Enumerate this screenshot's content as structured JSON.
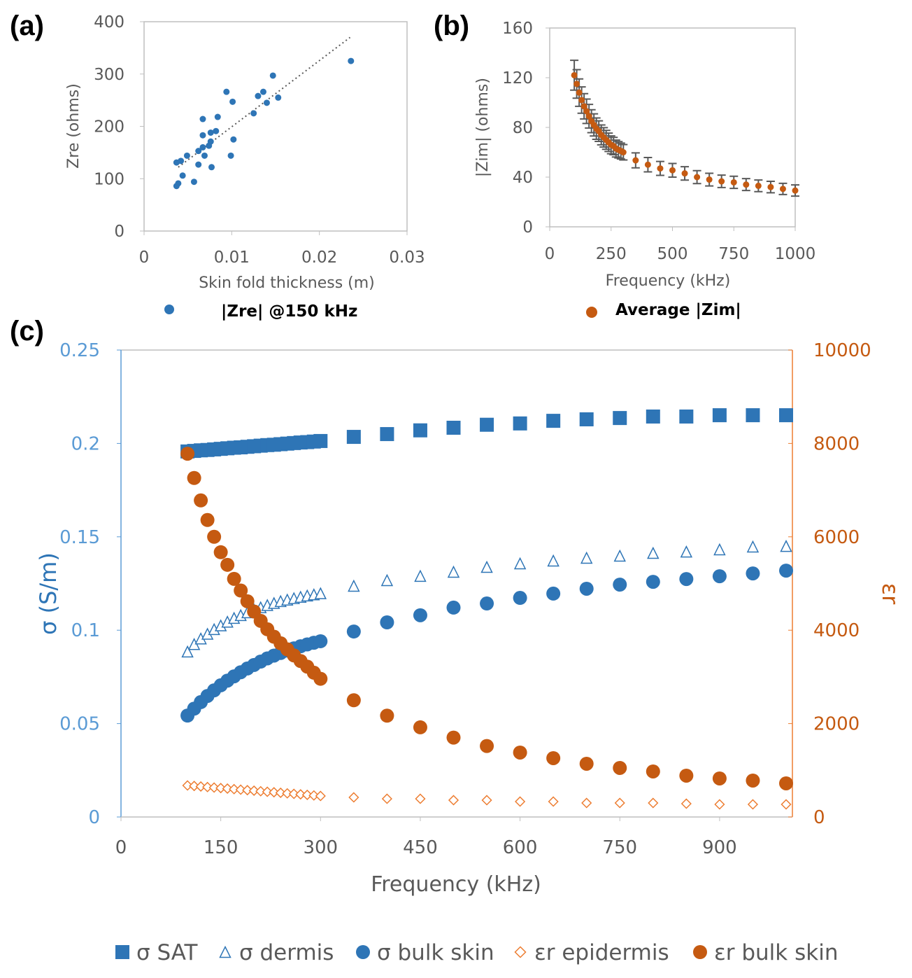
{
  "panel_labels": [
    "(a)",
    "(b)",
    "(c)"
  ],
  "colors": {
    "blue": "#2E75B6",
    "light_blue": "#5B9BD5",
    "orange": "#C55A11",
    "grey": "#595959"
  },
  "chart_data": [
    {
      "type": "scatter",
      "panel": "(a)",
      "xlabel": "Skin fold thickness (m)",
      "ylabel": "Zre (ohms)",
      "xlim": [
        0,
        0.03
      ],
      "ylim": [
        0,
        400
      ],
      "xticks": [
        "0",
        "0.01",
        "0.02",
        "0.03"
      ],
      "yticks": [
        "0",
        "100",
        "200",
        "300",
        "400"
      ],
      "grid": false,
      "legend_position": "bottom",
      "series": [
        {
          "name": "|Zre| @150 kHz",
          "color": "#2E75B6",
          "x": [
            0.0236,
            0.0147,
            0.0094,
            0.0136,
            0.013,
            0.0153,
            0.0101,
            0.014,
            0.0125,
            0.0067,
            0.0084,
            0.0067,
            0.0076,
            0.0082,
            0.0102,
            0.0076,
            0.0074,
            0.0067,
            0.0062,
            0.0049,
            0.0069,
            0.0099,
            0.0037,
            0.0042,
            0.0062,
            0.0077,
            0.0044,
            0.0057,
            0.0039,
            0.0037
          ],
          "y": [
            325,
            297,
            266,
            266,
            258,
            255,
            247,
            245,
            225,
            214,
            218,
            183,
            188,
            191,
            175,
            171,
            163,
            160,
            153,
            144,
            144,
            144,
            131,
            134,
            127,
            122,
            106,
            94,
            91,
            86
          ]
        }
      ],
      "trendline": {
        "style": "dotted",
        "x": [
          0.0039,
          0.0235
        ],
        "y": [
          122,
          370
        ]
      }
    },
    {
      "type": "scatter",
      "panel": "(b)",
      "xlabel": "Frequency (kHz)",
      "ylabel": "|Zim| (ohms)",
      "xlim": [
        0,
        1000
      ],
      "ylim": [
        0,
        160
      ],
      "xticks": [
        "0",
        "250",
        "500",
        "750",
        "1000"
      ],
      "yticks": [
        "0",
        "40",
        "80",
        "120",
        "160"
      ],
      "grid": false,
      "legend_position": "bottom",
      "series": [
        {
          "name": "Average |Zim|",
          "color": "#C55A11",
          "x": [
            100,
            110,
            120,
            130,
            140,
            150,
            160,
            170,
            180,
            190,
            200,
            210,
            220,
            230,
            240,
            250,
            260,
            270,
            280,
            290,
            300,
            350,
            400,
            450,
            500,
            550,
            600,
            650,
            700,
            750,
            800,
            850,
            900,
            950,
            1000
          ],
          "y": [
            122,
            115,
            108,
            102,
            97,
            93,
            89,
            85,
            82,
            79,
            77,
            74,
            72,
            70,
            68,
            66,
            65,
            63,
            62,
            61,
            60,
            53.5,
            50,
            47,
            45.5,
            43,
            40,
            38,
            36.6,
            35.8,
            34,
            33,
            32,
            30.5,
            29.2
          ],
          "error": [
            12,
            11.5,
            11,
            10.6,
            10.2,
            9.8,
            9.5,
            9.2,
            8.9,
            8.6,
            8.3,
            8,
            7.8,
            7.6,
            7.4,
            7.2,
            7,
            6.8,
            6.6,
            6.4,
            6.2,
            6,
            5.8,
            5.6,
            5.5,
            5.4,
            5.2,
            5.1,
            5,
            4.9,
            4.8,
            4.7,
            4.6,
            4.5,
            4.5
          ]
        }
      ]
    },
    {
      "type": "scatter",
      "panel": "(c)",
      "xlabel": "Frequency (kHz)",
      "ylabel": "σ (S/m)",
      "y2label": "εr",
      "xlim": [
        0,
        1000
      ],
      "ylim": [
        0,
        0.25
      ],
      "y2lim": [
        0,
        10000
      ],
      "xticks": [
        "0",
        "150",
        "300",
        "450",
        "600",
        "750",
        "900"
      ],
      "yticks": [
        "0",
        "0.05",
        "0.1",
        "0.15",
        "0.2",
        "0.25"
      ],
      "y2ticks": [
        "0",
        "2000",
        "4000",
        "6000",
        "8000",
        "10000"
      ],
      "grid": false,
      "legend_position": "bottom",
      "frequency_khz": [
        100,
        110,
        120,
        130,
        140,
        150,
        160,
        170,
        180,
        190,
        200,
        210,
        220,
        230,
        240,
        250,
        260,
        270,
        280,
        290,
        300,
        350,
        400,
        450,
        500,
        550,
        600,
        650,
        700,
        750,
        800,
        850,
        900,
        950,
        1000
      ],
      "series": [
        {
          "name": "σ SAT",
          "marker": "square",
          "axis": "left",
          "color": "#2E75B6",
          "y": [
            0.1957,
            0.196,
            0.1963,
            0.1965,
            0.1968,
            0.1971,
            0.1974,
            0.1977,
            0.1979,
            0.1982,
            0.1985,
            0.1988,
            0.1991,
            0.1993,
            0.1996,
            0.1999,
            0.2002,
            0.2005,
            0.2007,
            0.201,
            0.2013,
            0.2035,
            0.205,
            0.207,
            0.2084,
            0.21,
            0.2107,
            0.2121,
            0.2129,
            0.2136,
            0.2144,
            0.2144,
            0.2151,
            0.2151,
            0.2151
          ]
        },
        {
          "name": "σ dermis",
          "marker": "triangle-open",
          "axis": "left",
          "color": "#2E75B6",
          "y": [
            0.0885,
            0.0925,
            0.0955,
            0.098,
            0.1005,
            0.1025,
            0.1045,
            0.1065,
            0.108,
            0.1095,
            0.111,
            0.1122,
            0.1134,
            0.1145,
            0.1155,
            0.1163,
            0.1171,
            0.1178,
            0.1185,
            0.1191,
            0.1197,
            0.1237,
            0.1267,
            0.129,
            0.1312,
            0.1338,
            0.1357,
            0.1372,
            0.1387,
            0.1398,
            0.1413,
            0.142,
            0.1432,
            0.1447,
            0.145
          ]
        },
        {
          "name": "σ bulk skin",
          "marker": "circle",
          "axis": "left",
          "color": "#2E75B6",
          "y": [
            0.0543,
            0.058,
            0.0615,
            0.0648,
            0.0678,
            0.0705,
            0.073,
            0.0753,
            0.0775,
            0.0795,
            0.0814,
            0.0832,
            0.0849,
            0.0864,
            0.0878,
            0.0891,
            0.0903,
            0.0914,
            0.0924,
            0.0933,
            0.0941,
            0.0993,
            0.1042,
            0.108,
            0.1121,
            0.1143,
            0.1173,
            0.1196,
            0.1222,
            0.1244,
            0.1259,
            0.1274,
            0.1289,
            0.1304,
            0.1319
          ]
        },
        {
          "name": "εr epidermis",
          "marker": "diamond-open",
          "axis": "right",
          "color": "#ED7D31",
          "y": [
            675,
            664,
            653,
            641,
            630,
            619,
            608,
            596,
            585,
            574,
            563,
            551,
            540,
            529,
            518,
            506,
            495,
            484,
            473,
            461,
            450,
            420,
            390,
            390,
            360,
            360,
            330,
            330,
            300,
            300,
            300,
            285,
            270,
            270,
            270
          ]
        },
        {
          "name": "εr bulk skin",
          "marker": "circle",
          "axis": "right",
          "color": "#C55A11",
          "y": [
            7780,
            7260,
            6780,
            6360,
            6000,
            5670,
            5400,
            5100,
            4850,
            4620,
            4400,
            4200,
            4020,
            3860,
            3720,
            3590,
            3460,
            3340,
            3220,
            3090,
            2960,
            2500,
            2170,
            1920,
            1700,
            1520,
            1380,
            1260,
            1140,
            1050,
            975,
            885,
            825,
            780,
            720
          ]
        }
      ]
    }
  ]
}
